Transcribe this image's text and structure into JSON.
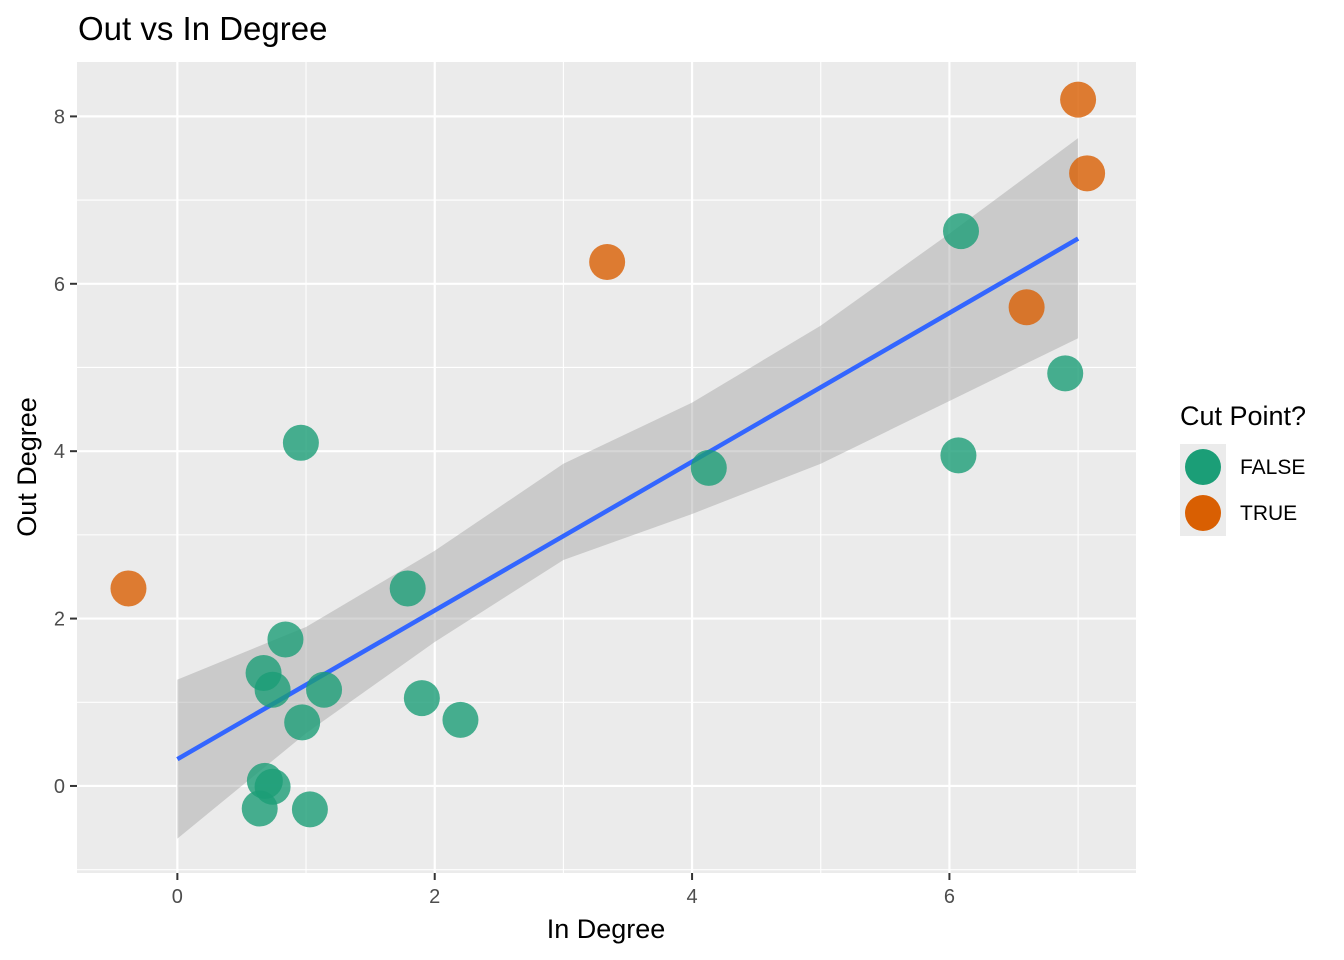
{
  "chart_data": {
    "type": "scatter",
    "title": "Out vs In Degree",
    "xlabel": "In Degree",
    "ylabel": "Out Degree",
    "xlim": [
      -0.78,
      7.45
    ],
    "ylim": [
      -1.04,
      8.65
    ],
    "x_ticks": [
      0,
      2,
      4,
      6
    ],
    "y_ticks": [
      0,
      2,
      4,
      6,
      8
    ],
    "x_tick_labels": [
      "0",
      "2",
      "4",
      "6"
    ],
    "y_tick_labels": [
      "0",
      "2",
      "4",
      "6",
      "8"
    ],
    "grid": true,
    "legend": {
      "title": "Cut Point?",
      "placement": "right",
      "entries": [
        {
          "label": "FALSE",
          "color": "#1b9e77"
        },
        {
          "label": "TRUE",
          "color": "#d95f02"
        }
      ]
    },
    "colors": {
      "FALSE": "#1b9e77",
      "TRUE": "#d95f02",
      "fit_line": "#3366ff",
      "confidence_band": "#999999",
      "panel": "#ebebeb"
    },
    "point_alpha": 0.8,
    "series": [
      {
        "name": "FALSE",
        "points": [
          {
            "x": 0.96,
            "y": 4.1
          },
          {
            "x": 1.79,
            "y": 2.36
          },
          {
            "x": 0.84,
            "y": 1.75
          },
          {
            "x": 0.67,
            "y": 1.35
          },
          {
            "x": 0.74,
            "y": 1.15
          },
          {
            "x": 1.14,
            "y": 1.15
          },
          {
            "x": 0.97,
            "y": 0.76
          },
          {
            "x": 1.9,
            "y": 1.05
          },
          {
            "x": 2.2,
            "y": 0.79
          },
          {
            "x": 0.68,
            "y": 0.06
          },
          {
            "x": 0.74,
            "y": -0.01
          },
          {
            "x": 0.64,
            "y": -0.27
          },
          {
            "x": 1.03,
            "y": -0.28
          },
          {
            "x": 4.13,
            "y": 3.8
          },
          {
            "x": 6.09,
            "y": 6.63
          },
          {
            "x": 6.07,
            "y": 3.95
          },
          {
            "x": 6.9,
            "y": 4.93
          }
        ]
      },
      {
        "name": "TRUE",
        "points": [
          {
            "x": -0.38,
            "y": 2.36
          },
          {
            "x": 3.34,
            "y": 6.26
          },
          {
            "x": 6.6,
            "y": 5.72
          },
          {
            "x": 7.0,
            "y": 8.2
          },
          {
            "x": 7.07,
            "y": 7.32
          }
        ]
      }
    ],
    "fit_line": {
      "x": [
        0,
        7
      ],
      "y": [
        0.32,
        6.54
      ]
    },
    "confidence_band": {
      "x": [
        0,
        1,
        2,
        3,
        4,
        5,
        6,
        7
      ],
      "lower": [
        -0.63,
        0.63,
        1.72,
        2.7,
        3.25,
        3.85,
        4.6,
        5.35
      ],
      "upper": [
        1.27,
        1.9,
        2.81,
        3.85,
        4.58,
        5.5,
        6.6,
        7.74
      ]
    }
  }
}
